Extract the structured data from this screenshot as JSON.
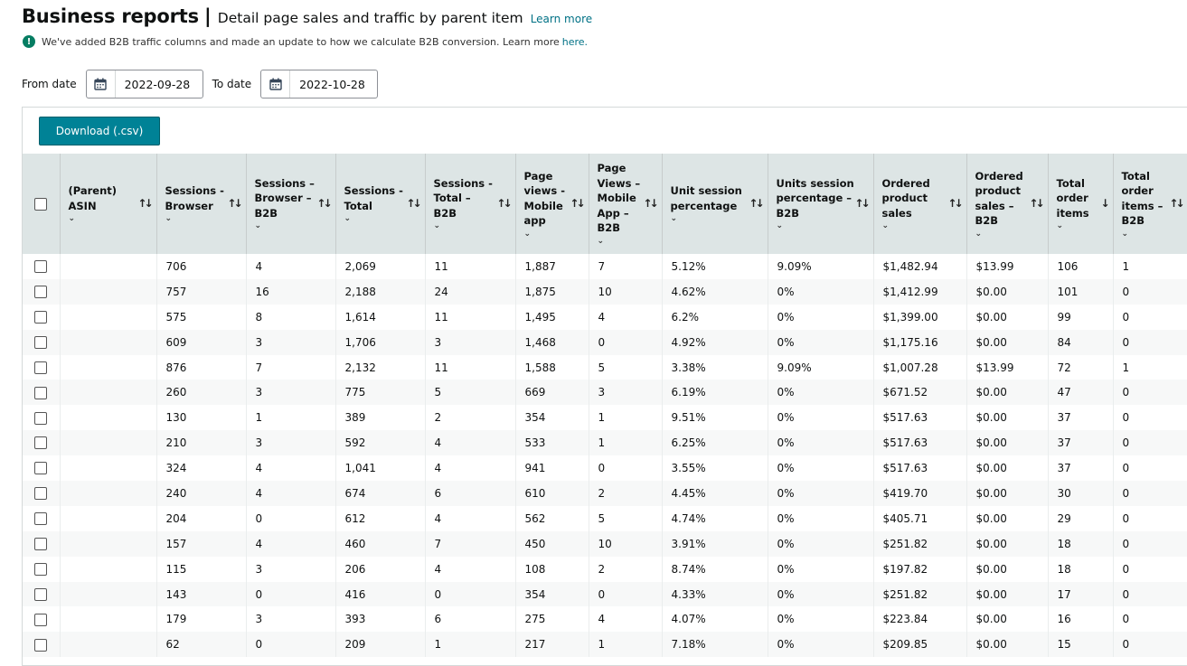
{
  "header": {
    "title": "Business reports",
    "separator": "|",
    "subtitle": "Detail page sales and traffic by parent item",
    "learn_more": "Learn more"
  },
  "notice": {
    "icon": "exclamation-icon",
    "text": "We've added B2B traffic columns and made an update to how we calculate B2B conversion. Learn more",
    "link": "here."
  },
  "dates": {
    "from_label": "From date",
    "from_value": "2022-09-28",
    "to_label": "To date",
    "to_value": "2022-10-28"
  },
  "download_label": "Download (.csv)",
  "columns": [
    {
      "label_lines": [
        "(Parent) ASIN"
      ],
      "sort": "↑↓"
    },
    {
      "label_lines": [
        "Sessions -",
        "Browser"
      ],
      "sort": "↑↓"
    },
    {
      "label_lines": [
        "Sessions –",
        "Browser –",
        "B2B"
      ],
      "sort": "↑↓"
    },
    {
      "label_lines": [
        "Sessions -",
        "Total"
      ],
      "sort": "↑↓"
    },
    {
      "label_lines": [
        "Sessions -",
        "Total – B2B"
      ],
      "sort": "↑↓"
    },
    {
      "label_lines": [
        "Page",
        "views -",
        "Mobile",
        "app"
      ],
      "sort": "↑↓"
    },
    {
      "label_lines": [
        "Page",
        "Views –",
        "Mobile",
        "App –",
        "B2B"
      ],
      "sort": "↑↓"
    },
    {
      "label_lines": [
        "Unit session",
        "percentage"
      ],
      "sort": "↑↓"
    },
    {
      "label_lines": [
        "Units session",
        "percentage –",
        "B2B"
      ],
      "sort": "↑↓"
    },
    {
      "label_lines": [
        "Ordered",
        "product",
        "sales"
      ],
      "sort": "↑↓"
    },
    {
      "label_lines": [
        "Ordered",
        "product",
        "sales –",
        "B2B"
      ],
      "sort": "↑↓"
    },
    {
      "label_lines": [
        "Total",
        "order",
        "items"
      ],
      "sort": "↓"
    },
    {
      "label_lines": [
        "Total",
        "order",
        "items –",
        "B2B"
      ],
      "sort": "↑↓"
    }
  ],
  "rows": [
    [
      "",
      "706",
      "4",
      "2,069",
      "11",
      "1,887",
      "7",
      "5.12%",
      "9.09%",
      "$1,482.94",
      "$13.99",
      "106",
      "1"
    ],
    [
      "",
      "757",
      "16",
      "2,188",
      "24",
      "1,875",
      "10",
      "4.62%",
      "0%",
      "$1,412.99",
      "$0.00",
      "101",
      "0"
    ],
    [
      "",
      "575",
      "8",
      "1,614",
      "11",
      "1,495",
      "4",
      "6.2%",
      "0%",
      "$1,399.00",
      "$0.00",
      "99",
      "0"
    ],
    [
      "",
      "609",
      "3",
      "1,706",
      "3",
      "1,468",
      "0",
      "4.92%",
      "0%",
      "$1,175.16",
      "$0.00",
      "84",
      "0"
    ],
    [
      "",
      "876",
      "7",
      "2,132",
      "11",
      "1,588",
      "5",
      "3.38%",
      "9.09%",
      "$1,007.28",
      "$13.99",
      "72",
      "1"
    ],
    [
      "",
      "260",
      "3",
      "775",
      "5",
      "669",
      "3",
      "6.19%",
      "0%",
      "$671.52",
      "$0.00",
      "47",
      "0"
    ],
    [
      "",
      "130",
      "1",
      "389",
      "2",
      "354",
      "1",
      "9.51%",
      "0%",
      "$517.63",
      "$0.00",
      "37",
      "0"
    ],
    [
      "",
      "210",
      "3",
      "592",
      "4",
      "533",
      "1",
      "6.25%",
      "0%",
      "$517.63",
      "$0.00",
      "37",
      "0"
    ],
    [
      "",
      "324",
      "4",
      "1,041",
      "4",
      "941",
      "0",
      "3.55%",
      "0%",
      "$517.63",
      "$0.00",
      "37",
      "0"
    ],
    [
      "",
      "240",
      "4",
      "674",
      "6",
      "610",
      "2",
      "4.45%",
      "0%",
      "$419.70",
      "$0.00",
      "30",
      "0"
    ],
    [
      "",
      "204",
      "0",
      "612",
      "4",
      "562",
      "5",
      "4.74%",
      "0%",
      "$405.71",
      "$0.00",
      "29",
      "0"
    ],
    [
      "",
      "157",
      "4",
      "460",
      "7",
      "450",
      "10",
      "3.91%",
      "0%",
      "$251.82",
      "$0.00",
      "18",
      "0"
    ],
    [
      "",
      "115",
      "3",
      "206",
      "4",
      "108",
      "2",
      "8.74%",
      "0%",
      "$197.82",
      "$0.00",
      "18",
      "0"
    ],
    [
      "",
      "143",
      "0",
      "416",
      "0",
      "354",
      "0",
      "4.33%",
      "0%",
      "$251.82",
      "$0.00",
      "17",
      "0"
    ],
    [
      "",
      "179",
      "3",
      "393",
      "6",
      "275",
      "4",
      "4.07%",
      "0%",
      "$223.84",
      "$0.00",
      "16",
      "0"
    ],
    [
      "",
      "62",
      "0",
      "209",
      "1",
      "217",
      "1",
      "7.18%",
      "0%",
      "$209.85",
      "$0.00",
      "15",
      "0"
    ]
  ]
}
